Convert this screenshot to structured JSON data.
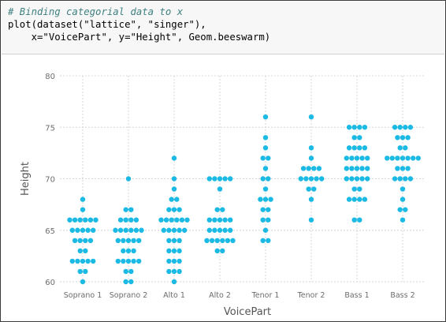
{
  "code_cell": {
    "lines": [
      "# Binding categorial data to x",
      "plot(dataset(\"lattice\", \"singer\"),",
      "    x=\"VoicePart\", y=\"Height\", Geom.beeswarm)"
    ]
  },
  "colors": {
    "point": "#1bbae5",
    "grid": "#d5d5d5",
    "tick_label": "#6c6c6c",
    "axis_label": "#555555"
  },
  "chart_data": {
    "type": "scatter",
    "style": "beeswarm",
    "xlabel": "VoicePart",
    "ylabel": "Height",
    "categories": [
      "Soprano 1",
      "Soprano 2",
      "Alto 1",
      "Alto 2",
      "Tenor 1",
      "Tenor 2",
      "Bass 1",
      "Bass 2"
    ],
    "yticks": [
      60,
      65,
      70,
      75,
      80
    ],
    "ylim": [
      60,
      80
    ],
    "grid": true,
    "legend": "none",
    "series": [
      {
        "category": "Soprano 1",
        "values": [
          60,
          61,
          61,
          62,
          62,
          62,
          62,
          62,
          63,
          63,
          64,
          64,
          64,
          64,
          65,
          65,
          65,
          65,
          65,
          66,
          66,
          66,
          66,
          66,
          66,
          67,
          68
        ]
      },
      {
        "category": "Soprano 2",
        "values": [
          60,
          60,
          61,
          61,
          62,
          62,
          62,
          62,
          62,
          63,
          63,
          63,
          64,
          64,
          64,
          64,
          64,
          65,
          65,
          65,
          65,
          65,
          65,
          66,
          66,
          66,
          66,
          67,
          67,
          70
        ]
      },
      {
        "category": "Alto 1",
        "values": [
          60,
          61,
          61,
          61,
          62,
          62,
          62,
          63,
          63,
          63,
          64,
          64,
          64,
          65,
          65,
          65,
          65,
          65,
          66,
          66,
          66,
          66,
          66,
          66,
          67,
          67,
          67,
          68,
          68,
          69,
          70,
          72
        ]
      },
      {
        "category": "Alto 2",
        "values": [
          63,
          63,
          64,
          64,
          64,
          64,
          64,
          64,
          65,
          65,
          65,
          65,
          65,
          66,
          66,
          66,
          66,
          66,
          67,
          67,
          69,
          70,
          70,
          70,
          70,
          70
        ]
      },
      {
        "category": "Tenor 1",
        "values": [
          64,
          64,
          65,
          66,
          66,
          67,
          67,
          68,
          68,
          68,
          69,
          70,
          70,
          71,
          72,
          72,
          73,
          74,
          76
        ]
      },
      {
        "category": "Tenor 2",
        "values": [
          66,
          68,
          69,
          69,
          70,
          70,
          70,
          70,
          70,
          71,
          71,
          71,
          71,
          72,
          73,
          76
        ]
      },
      {
        "category": "Bass 1",
        "values": [
          66,
          66,
          68,
          68,
          68,
          68,
          69,
          69,
          70,
          70,
          70,
          70,
          70,
          71,
          71,
          71,
          71,
          71,
          72,
          72,
          72,
          72,
          72,
          73,
          73,
          73,
          73,
          74,
          74,
          75,
          75,
          75,
          75
        ]
      },
      {
        "category": "Bass 2",
        "values": [
          66,
          67,
          67,
          68,
          69,
          70,
          70,
          70,
          70,
          71,
          71,
          71,
          72,
          72,
          72,
          72,
          72,
          72,
          72,
          73,
          73,
          74,
          74,
          74,
          75,
          75,
          75,
          75
        ]
      }
    ]
  }
}
